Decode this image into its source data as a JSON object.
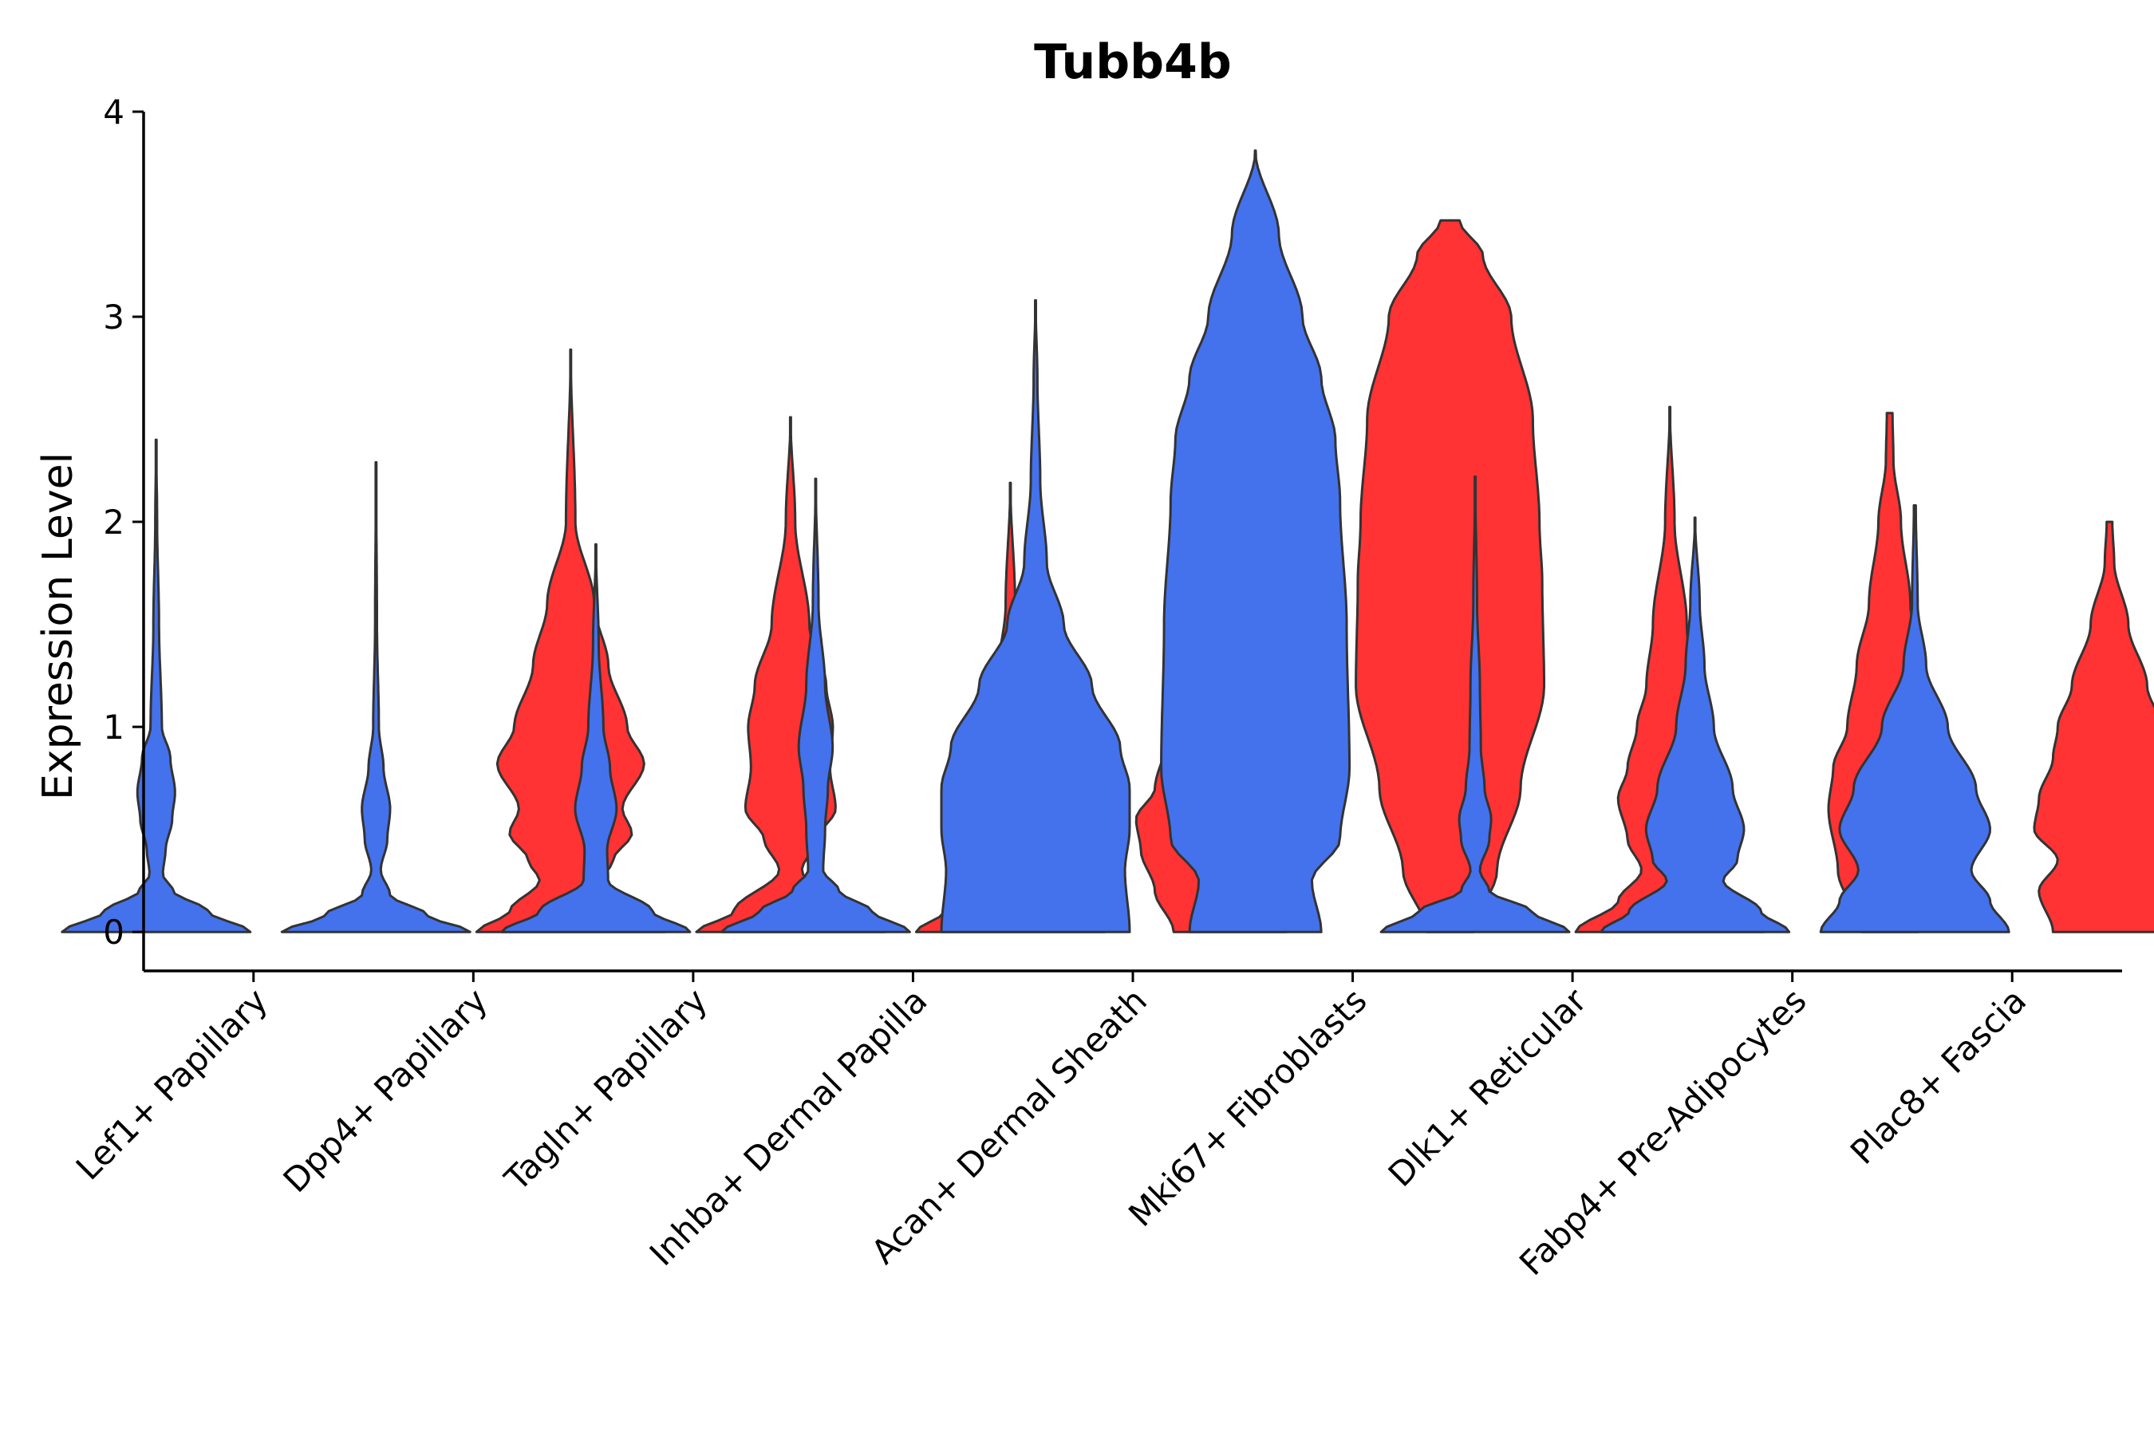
{
  "chart_data": {
    "type": "violin",
    "title": "Tubb4b",
    "xlabel": "",
    "ylabel": "Expression Level",
    "ylim": [
      -0.19,
      4.0
    ],
    "yticks": [
      0,
      1,
      2,
      3,
      4
    ],
    "grid": false,
    "legend": "none",
    "categories": [
      "Lef1+ Papillary",
      "Dpp4+ Papillary",
      "Tagln+ Papillary",
      "Inhba+ Dermal Papilla",
      "Acan+ Dermal Sheath",
      "Mki67+ Fibroblasts",
      "Dlk1+ Reticular",
      "Fabp4+ Pre-Adipocytes",
      "Plac8+ Fascia"
    ],
    "colors": {
      "group1": "#4472ED",
      "group2": "#FF3333"
    },
    "violins": [
      {
        "category": 0,
        "group": "group1",
        "max": 2.4,
        "profile": [
          [
            0,
            1.0
          ],
          [
            0.1,
            0.55
          ],
          [
            0.2,
            0.18
          ],
          [
            0.28,
            0.07
          ],
          [
            0.4,
            0.1
          ],
          [
            0.55,
            0.17
          ],
          [
            0.68,
            0.2
          ],
          [
            0.85,
            0.15
          ],
          [
            1.0,
            0.06
          ],
          [
            1.5,
            0.03
          ],
          [
            2.0,
            0.01
          ],
          [
            2.4,
            0.0
          ]
        ]
      },
      {
        "category": 1,
        "group": "group1",
        "max": 2.29,
        "profile": [
          [
            0,
            1.0
          ],
          [
            0.08,
            0.55
          ],
          [
            0.18,
            0.15
          ],
          [
            0.3,
            0.05
          ],
          [
            0.45,
            0.12
          ],
          [
            0.6,
            0.15
          ],
          [
            0.8,
            0.08
          ],
          [
            1.0,
            0.03
          ],
          [
            1.5,
            0.01
          ],
          [
            2.29,
            0.0
          ]
        ]
      },
      {
        "category": 1,
        "group": "group2",
        "max": 2.84,
        "profile": [
          [
            0,
            1.0
          ],
          [
            0.1,
            0.65
          ],
          [
            0.25,
            0.33
          ],
          [
            0.35,
            0.45
          ],
          [
            0.48,
            0.65
          ],
          [
            0.6,
            0.55
          ],
          [
            0.82,
            0.78
          ],
          [
            1.0,
            0.6
          ],
          [
            1.3,
            0.4
          ],
          [
            1.6,
            0.25
          ],
          [
            2.0,
            0.05
          ],
          [
            2.84,
            0.0
          ]
        ]
      },
      {
        "category": 2,
        "group": "group1",
        "max": 1.89,
        "profile": [
          [
            0,
            1.0
          ],
          [
            0.1,
            0.6
          ],
          [
            0.25,
            0.13
          ],
          [
            0.4,
            0.12
          ],
          [
            0.6,
            0.22
          ],
          [
            0.8,
            0.15
          ],
          [
            1.0,
            0.08
          ],
          [
            1.4,
            0.03
          ],
          [
            1.89,
            0.0
          ]
        ]
      },
      {
        "category": 2,
        "group": "group2",
        "max": 2.51,
        "profile": [
          [
            0,
            1.0
          ],
          [
            0.1,
            0.6
          ],
          [
            0.3,
            0.12
          ],
          [
            0.45,
            0.28
          ],
          [
            0.6,
            0.48
          ],
          [
            0.8,
            0.42
          ],
          [
            1.0,
            0.45
          ],
          [
            1.2,
            0.38
          ],
          [
            1.5,
            0.2
          ],
          [
            2.0,
            0.05
          ],
          [
            2.51,
            0.0
          ]
        ]
      },
      {
        "category": 3,
        "group": "group1",
        "max": 2.21,
        "profile": [
          [
            0,
            1.0
          ],
          [
            0.1,
            0.6
          ],
          [
            0.2,
            0.25
          ],
          [
            0.3,
            0.08
          ],
          [
            0.5,
            0.1
          ],
          [
            0.7,
            0.13
          ],
          [
            0.9,
            0.18
          ],
          [
            1.2,
            0.1
          ],
          [
            1.6,
            0.03
          ],
          [
            2.21,
            0.0
          ]
        ]
      },
      {
        "category": 3,
        "group": "group2",
        "max": 2.19,
        "profile": [
          [
            0,
            1.0
          ],
          [
            0.1,
            0.7
          ],
          [
            0.25,
            0.25
          ],
          [
            0.4,
            0.38
          ],
          [
            0.6,
            0.4
          ],
          [
            0.75,
            0.48
          ],
          [
            0.9,
            0.3
          ],
          [
            1.2,
            0.15
          ],
          [
            1.6,
            0.05
          ],
          [
            2.19,
            0.0
          ]
        ]
      },
      {
        "category": 4,
        "group": "group1",
        "max": 3.08,
        "profile": [
          [
            0,
            1.0
          ],
          [
            0.3,
            0.95
          ],
          [
            0.5,
            1.0
          ],
          [
            0.7,
            1.0
          ],
          [
            0.9,
            0.9
          ],
          [
            1.2,
            0.6
          ],
          [
            1.5,
            0.3
          ],
          [
            1.8,
            0.12
          ],
          [
            2.2,
            0.05
          ],
          [
            2.7,
            0.02
          ],
          [
            3.08,
            0.0
          ]
        ]
      },
      {
        "category": 4,
        "group": "group2",
        "max": 2.82,
        "profile": [
          [
            0,
            0.6
          ],
          [
            0.2,
            0.8
          ],
          [
            0.4,
            0.95
          ],
          [
            0.55,
            1.0
          ],
          [
            0.7,
            0.8
          ],
          [
            0.9,
            0.7
          ],
          [
            1.1,
            0.6
          ],
          [
            1.3,
            0.45
          ],
          [
            1.6,
            0.2
          ],
          [
            2.0,
            0.08
          ],
          [
            2.5,
            0.05
          ],
          [
            2.82,
            0.04
          ]
        ]
      },
      {
        "category": 5,
        "group": "group1",
        "max": 3.81,
        "profile": [
          [
            0,
            0.7
          ],
          [
            0.25,
            0.6
          ],
          [
            0.45,
            0.9
          ],
          [
            0.8,
            1.0
          ],
          [
            1.5,
            0.97
          ],
          [
            2.1,
            0.9
          ],
          [
            2.4,
            0.85
          ],
          [
            2.7,
            0.7
          ],
          [
            3.0,
            0.5
          ],
          [
            3.4,
            0.25
          ],
          [
            3.81,
            0.0
          ]
        ]
      },
      {
        "category": 5,
        "group": "group2",
        "max": 3.47,
        "profile": [
          [
            0,
            0.25
          ],
          [
            0.3,
            0.5
          ],
          [
            0.7,
            0.75
          ],
          [
            1.2,
            1.0
          ],
          [
            1.7,
            0.98
          ],
          [
            2.0,
            0.95
          ],
          [
            2.5,
            0.88
          ],
          [
            3.0,
            0.65
          ],
          [
            3.3,
            0.35
          ],
          [
            3.47,
            0.1
          ]
        ]
      },
      {
        "category": 6,
        "group": "group1",
        "max": 2.22,
        "profile": [
          [
            0,
            1.0
          ],
          [
            0.1,
            0.6
          ],
          [
            0.2,
            0.15
          ],
          [
            0.3,
            0.05
          ],
          [
            0.45,
            0.15
          ],
          [
            0.55,
            0.17
          ],
          [
            0.7,
            0.1
          ],
          [
            0.9,
            0.06
          ],
          [
            1.2,
            0.05
          ],
          [
            1.6,
            0.02
          ],
          [
            2.22,
            0.0
          ]
        ]
      },
      {
        "category": 6,
        "group": "group2",
        "max": 2.56,
        "profile": [
          [
            0,
            1.0
          ],
          [
            0.15,
            0.55
          ],
          [
            0.3,
            0.3
          ],
          [
            0.45,
            0.45
          ],
          [
            0.65,
            0.55
          ],
          [
            0.8,
            0.45
          ],
          [
            1.0,
            0.35
          ],
          [
            1.2,
            0.25
          ],
          [
            1.5,
            0.18
          ],
          [
            2.0,
            0.05
          ],
          [
            2.56,
            0.0
          ]
        ]
      },
      {
        "category": 7,
        "group": "group1",
        "max": 2.02,
        "profile": [
          [
            0,
            1.0
          ],
          [
            0.1,
            0.7
          ],
          [
            0.25,
            0.3
          ],
          [
            0.35,
            0.45
          ],
          [
            0.5,
            0.52
          ],
          [
            0.7,
            0.4
          ],
          [
            1.0,
            0.2
          ],
          [
            1.3,
            0.1
          ],
          [
            1.6,
            0.05
          ],
          [
            2.02,
            0.0
          ]
        ]
      },
      {
        "category": 7,
        "group": "group2",
        "max": 2.53,
        "profile": [
          [
            0,
            0.3
          ],
          [
            0.3,
            0.55
          ],
          [
            0.6,
            0.65
          ],
          [
            0.8,
            0.6
          ],
          [
            1.0,
            0.45
          ],
          [
            1.3,
            0.35
          ],
          [
            1.6,
            0.22
          ],
          [
            2.0,
            0.12
          ],
          [
            2.3,
            0.04
          ],
          [
            2.53,
            0.03
          ]
        ]
      },
      {
        "category": 8,
        "group": "group1",
        "max": 2.08,
        "profile": [
          [
            0,
            1.0
          ],
          [
            0.15,
            0.8
          ],
          [
            0.3,
            0.6
          ],
          [
            0.5,
            0.8
          ],
          [
            0.7,
            0.65
          ],
          [
            1.0,
            0.35
          ],
          [
            1.3,
            0.12
          ],
          [
            1.6,
            0.03
          ],
          [
            2.08,
            0.01
          ]
        ]
      },
      {
        "category": 8,
        "group": "group2",
        "max": 2.0,
        "profile": [
          [
            0,
            0.6
          ],
          [
            0.2,
            0.75
          ],
          [
            0.35,
            0.55
          ],
          [
            0.5,
            0.8
          ],
          [
            0.65,
            0.75
          ],
          [
            0.85,
            0.6
          ],
          [
            1.0,
            0.55
          ],
          [
            1.2,
            0.4
          ],
          [
            1.5,
            0.2
          ],
          [
            1.8,
            0.05
          ],
          [
            2.0,
            0.03
          ]
        ]
      }
    ]
  }
}
